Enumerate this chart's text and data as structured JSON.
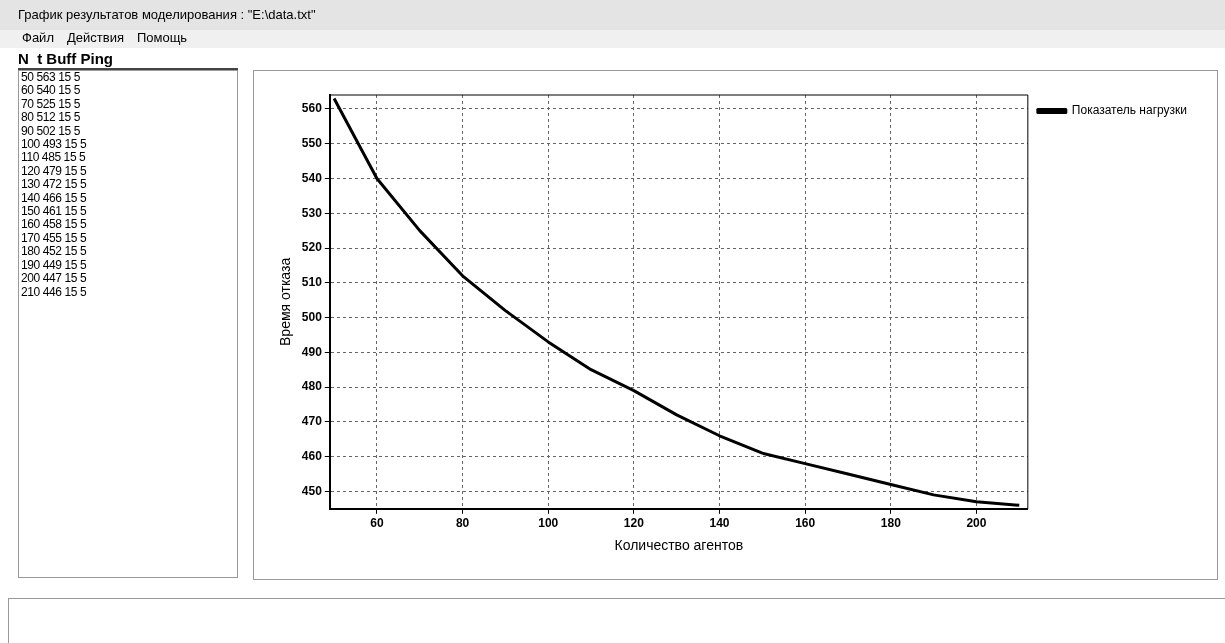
{
  "chart_data": {
    "type": "line",
    "title": "График результатов моделирования : \"E:\\data.txt\"",
    "xlabel": "Количество агентов",
    "ylabel": "Время отказа",
    "x": [
      50,
      60,
      70,
      80,
      90,
      100,
      110,
      120,
      130,
      140,
      150,
      160,
      170,
      180,
      190,
      200,
      210
    ],
    "series": [
      {
        "name": "Показатель нагрузки",
        "color": "#000000",
        "values": [
          563,
          540,
          525,
          512,
          502,
          493,
          485,
          479,
          472,
          466,
          461,
          458,
          455,
          452,
          449,
          447,
          446
        ]
      }
    ],
    "xlim": [
      49,
      212
    ],
    "xticks": [
      60,
      80,
      100,
      120,
      140,
      160,
      180,
      200
    ],
    "ylim": [
      445,
      564
    ],
    "yticks": [
      450,
      460,
      470,
      480,
      490,
      500,
      510,
      520,
      530,
      540,
      550,
      560
    ],
    "grid": true,
    "legend": "top right",
    "marker": "none",
    "line_style": "solid",
    "annotations": [
      "Файл",
      "Действия",
      "Помощь",
      "N  t Buff Ping",
      "50 563 15 5",
      "60 540 15 5",
      "70 525 15 5",
      "80 512 15 5",
      "90 502 15 5",
      "100 493 15 5",
      "110 485 15 5",
      "120 479 15 5",
      "130 472 15 5",
      "140 466 15 5",
      "150 461 15 5",
      "160 458 15 5",
      "170 455 15 5",
      "180 452 15 5",
      "190 449 15 5",
      "200 447 15 5",
      "210 446 15 5"
    ]
  }
}
